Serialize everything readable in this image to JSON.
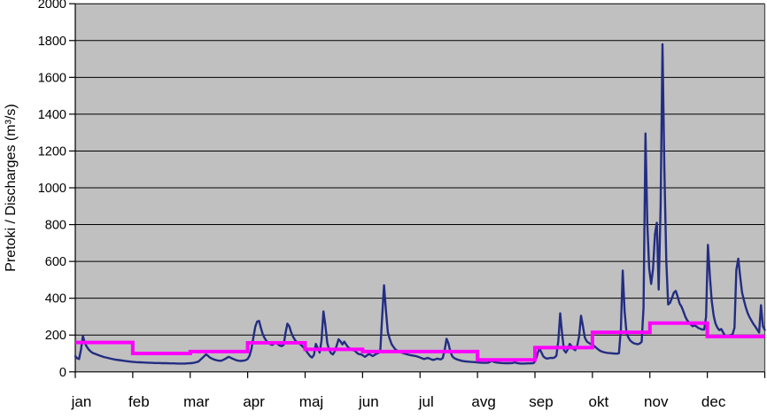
{
  "chart_data": {
    "type": "line",
    "title": "",
    "xlabel": "",
    "ylabel": "Pretoki / Discharges (m³/s)",
    "ylim": [
      0,
      2000
    ],
    "ytick_step": 200,
    "yticks": [
      0,
      200,
      400,
      600,
      800,
      1000,
      1200,
      1400,
      1600,
      1800,
      2000
    ],
    "categories": [
      "jan",
      "feb",
      "mar",
      "apr",
      "maj",
      "jun",
      "jul",
      "avg",
      "sep",
      "okt",
      "nov",
      "dec"
    ],
    "days_in_year": 365,
    "grid": true,
    "legend": "none",
    "plot_background": "#c0c0c0",
    "gridline_color": "#000000",
    "series": [
      {
        "name": "daily-discharge-line",
        "type": "line",
        "color": "#232d82",
        "points": [
          [
            1,
            85
          ],
          [
            2,
            74
          ],
          [
            3,
            70
          ],
          [
            4,
            120
          ],
          [
            5,
            195
          ],
          [
            6,
            158
          ],
          [
            7,
            138
          ],
          [
            8,
            122
          ],
          [
            9,
            112
          ],
          [
            10,
            104
          ],
          [
            12,
            96
          ],
          [
            14,
            88
          ],
          [
            16,
            81
          ],
          [
            18,
            76
          ],
          [
            20,
            71
          ],
          [
            22,
            67
          ],
          [
            24,
            64
          ],
          [
            26,
            61
          ],
          [
            28,
            58
          ],
          [
            30,
            56
          ],
          [
            31,
            55
          ],
          [
            33,
            53
          ],
          [
            35,
            52
          ],
          [
            37,
            51
          ],
          [
            39,
            50
          ],
          [
            41,
            49
          ],
          [
            43,
            48
          ],
          [
            45,
            48
          ],
          [
            47,
            47
          ],
          [
            49,
            47
          ],
          [
            51,
            46
          ],
          [
            53,
            46
          ],
          [
            55,
            45
          ],
          [
            57,
            45
          ],
          [
            59,
            45
          ],
          [
            60,
            46
          ],
          [
            62,
            47
          ],
          [
            64,
            50
          ],
          [
            66,
            56
          ],
          [
            68,
            75
          ],
          [
            70,
            95
          ],
          [
            71,
            88
          ],
          [
            72,
            78
          ],
          [
            74,
            68
          ],
          [
            76,
            62
          ],
          [
            78,
            60
          ],
          [
            80,
            70
          ],
          [
            82,
            82
          ],
          [
            84,
            72
          ],
          [
            86,
            63
          ],
          [
            88,
            59
          ],
          [
            90,
            61
          ],
          [
            91,
            64
          ],
          [
            92,
            70
          ],
          [
            93,
            88
          ],
          [
            94,
            125
          ],
          [
            95,
            185
          ],
          [
            96,
            245
          ],
          [
            97,
            273
          ],
          [
            98,
            277
          ],
          [
            99,
            238
          ],
          [
            100,
            204
          ],
          [
            101,
            182
          ],
          [
            102,
            167
          ],
          [
            103,
            157
          ],
          [
            104,
            150
          ],
          [
            105,
            147
          ],
          [
            106,
            153
          ],
          [
            107,
            158
          ],
          [
            108,
            150
          ],
          [
            109,
            143
          ],
          [
            110,
            140
          ],
          [
            111,
            147
          ],
          [
            112,
            212
          ],
          [
            113,
            262
          ],
          [
            114,
            247
          ],
          [
            115,
            214
          ],
          [
            116,
            190
          ],
          [
            117,
            173
          ],
          [
            118,
            162
          ],
          [
            119,
            155
          ],
          [
            120,
            148
          ],
          [
            121,
            138
          ],
          [
            122,
            127
          ],
          [
            123,
            113
          ],
          [
            124,
            98
          ],
          [
            125,
            85
          ],
          [
            126,
            78
          ],
          [
            127,
            92
          ],
          [
            128,
            152
          ],
          [
            129,
            128
          ],
          [
            130,
            105
          ],
          [
            131,
            170
          ],
          [
            132,
            328
          ],
          [
            133,
            255
          ],
          [
            134,
            158
          ],
          [
            135,
            120
          ],
          [
            136,
            102
          ],
          [
            137,
            95
          ],
          [
            138,
            112
          ],
          [
            139,
            142
          ],
          [
            140,
            177
          ],
          [
            141,
            166
          ],
          [
            142,
            149
          ],
          [
            143,
            164
          ],
          [
            144,
            149
          ],
          [
            145,
            134
          ],
          [
            146,
            127
          ],
          [
            147,
            121
          ],
          [
            148,
            117
          ],
          [
            149,
            111
          ],
          [
            150,
            100
          ],
          [
            151,
            96
          ],
          [
            152,
            95
          ],
          [
            153,
            88
          ],
          [
            154,
            82
          ],
          [
            155,
            90
          ],
          [
            156,
            97
          ],
          [
            157,
            92
          ],
          [
            158,
            86
          ],
          [
            159,
            92
          ],
          [
            160,
            99
          ],
          [
            161,
            102
          ],
          [
            162,
            110
          ],
          [
            163,
            300
          ],
          [
            164,
            470
          ],
          [
            165,
            330
          ],
          [
            166,
            215
          ],
          [
            167,
            180
          ],
          [
            168,
            150
          ],
          [
            169,
            135
          ],
          [
            170,
            122
          ],
          [
            171,
            115
          ],
          [
            172,
            110
          ],
          [
            173,
            106
          ],
          [
            174,
            102
          ],
          [
            175,
            99
          ],
          [
            176,
            96
          ],
          [
            177,
            93
          ],
          [
            178,
            91
          ],
          [
            179,
            89
          ],
          [
            180,
            87
          ],
          [
            181,
            85
          ],
          [
            182,
            82
          ],
          [
            183,
            78
          ],
          [
            184,
            74
          ],
          [
            185,
            70
          ],
          [
            186,
            72
          ],
          [
            187,
            76
          ],
          [
            188,
            72
          ],
          [
            189,
            68
          ],
          [
            190,
            65
          ],
          [
            191,
            68
          ],
          [
            192,
            72
          ],
          [
            193,
            70
          ],
          [
            194,
            68
          ],
          [
            195,
            75
          ],
          [
            196,
            120
          ],
          [
            197,
            180
          ],
          [
            198,
            155
          ],
          [
            199,
            110
          ],
          [
            200,
            85
          ],
          [
            201,
            75
          ],
          [
            202,
            70
          ],
          [
            203,
            66
          ],
          [
            204,
            63
          ],
          [
            205,
            60
          ],
          [
            206,
            58
          ],
          [
            207,
            57
          ],
          [
            208,
            56
          ],
          [
            210,
            54
          ],
          [
            212,
            53
          ],
          [
            213,
            52
          ],
          [
            215,
            50
          ],
          [
            217,
            49
          ],
          [
            219,
            50
          ],
          [
            220,
            55
          ],
          [
            221,
            60
          ],
          [
            222,
            54
          ],
          [
            224,
            50
          ],
          [
            226,
            48
          ],
          [
            228,
            47
          ],
          [
            230,
            47
          ],
          [
            232,
            48
          ],
          [
            233,
            52
          ],
          [
            234,
            48
          ],
          [
            236,
            45
          ],
          [
            238,
            45
          ],
          [
            240,
            46
          ],
          [
            242,
            46
          ],
          [
            243,
            48
          ],
          [
            244,
            62
          ],
          [
            245,
            98
          ],
          [
            246,
            128
          ],
          [
            247,
            108
          ],
          [
            248,
            85
          ],
          [
            249,
            76
          ],
          [
            250,
            72
          ],
          [
            251,
            74
          ],
          [
            252,
            76
          ],
          [
            253,
            75
          ],
          [
            254,
            78
          ],
          [
            255,
            88
          ],
          [
            256,
            170
          ],
          [
            257,
            318
          ],
          [
            258,
            205
          ],
          [
            259,
            118
          ],
          [
            260,
            105
          ],
          [
            261,
            122
          ],
          [
            262,
            152
          ],
          [
            263,
            140
          ],
          [
            264,
            124
          ],
          [
            265,
            118
          ],
          [
            266,
            142
          ],
          [
            267,
            195
          ],
          [
            268,
            305
          ],
          [
            269,
            248
          ],
          [
            270,
            186
          ],
          [
            271,
            166
          ],
          [
            272,
            158
          ],
          [
            273,
            152
          ],
          [
            274,
            148
          ],
          [
            275,
            140
          ],
          [
            276,
            131
          ],
          [
            277,
            122
          ],
          [
            278,
            115
          ],
          [
            279,
            110
          ],
          [
            280,
            107
          ],
          [
            281,
            105
          ],
          [
            282,
            103
          ],
          [
            283,
            102
          ],
          [
            284,
            101
          ],
          [
            285,
            100
          ],
          [
            286,
            99
          ],
          [
            287,
            99
          ],
          [
            288,
            101
          ],
          [
            289,
            230
          ],
          [
            290,
            550
          ],
          [
            291,
            330
          ],
          [
            292,
            212
          ],
          [
            293,
            186
          ],
          [
            294,
            170
          ],
          [
            295,
            161
          ],
          [
            296,
            155
          ],
          [
            297,
            152
          ],
          [
            298,
            150
          ],
          [
            299,
            154
          ],
          [
            300,
            163
          ],
          [
            301,
            350
          ],
          [
            302,
            1295
          ],
          [
            303,
            800
          ],
          [
            304,
            560
          ],
          [
            305,
            478
          ],
          [
            306,
            558
          ],
          [
            307,
            748
          ],
          [
            308,
            810
          ],
          [
            309,
            447
          ],
          [
            310,
            905
          ],
          [
            311,
            1780
          ],
          [
            312,
            1105
          ],
          [
            313,
            602
          ],
          [
            314,
            366
          ],
          [
            315,
            376
          ],
          [
            316,
            402
          ],
          [
            317,
            430
          ],
          [
            318,
            440
          ],
          [
            319,
            409
          ],
          [
            320,
            371
          ],
          [
            321,
            355
          ],
          [
            322,
            330
          ],
          [
            323,
            301
          ],
          [
            324,
            281
          ],
          [
            325,
            268
          ],
          [
            326,
            256
          ],
          [
            327,
            248
          ],
          [
            328,
            252
          ],
          [
            329,
            246
          ],
          [
            330,
            238
          ],
          [
            331,
            234
          ],
          [
            332,
            230
          ],
          [
            333,
            230
          ],
          [
            334,
            300
          ],
          [
            335,
            690
          ],
          [
            336,
            520
          ],
          [
            337,
            385
          ],
          [
            338,
            305
          ],
          [
            339,
            262
          ],
          [
            340,
            240
          ],
          [
            341,
            226
          ],
          [
            342,
            233
          ],
          [
            343,
            215
          ],
          [
            344,
            196
          ],
          [
            345,
            192
          ],
          [
            346,
            196
          ],
          [
            347,
            200
          ],
          [
            348,
            203
          ],
          [
            349,
            240
          ],
          [
            350,
            555
          ],
          [
            351,
            615
          ],
          [
            352,
            518
          ],
          [
            353,
            432
          ],
          [
            354,
            388
          ],
          [
            355,
            350
          ],
          [
            356,
            318
          ],
          [
            357,
            296
          ],
          [
            358,
            278
          ],
          [
            359,
            260
          ],
          [
            360,
            246
          ],
          [
            361,
            230
          ],
          [
            362,
            213
          ],
          [
            363,
            362
          ],
          [
            364,
            248
          ],
          [
            365,
            228
          ]
        ]
      },
      {
        "name": "monthly-mean-step-line",
        "type": "step",
        "color": "#ff00ff",
        "values": [
          160,
          100,
          110,
          158,
          122,
          110,
          110,
          65,
          132,
          215,
          265,
          192
        ]
      }
    ]
  }
}
